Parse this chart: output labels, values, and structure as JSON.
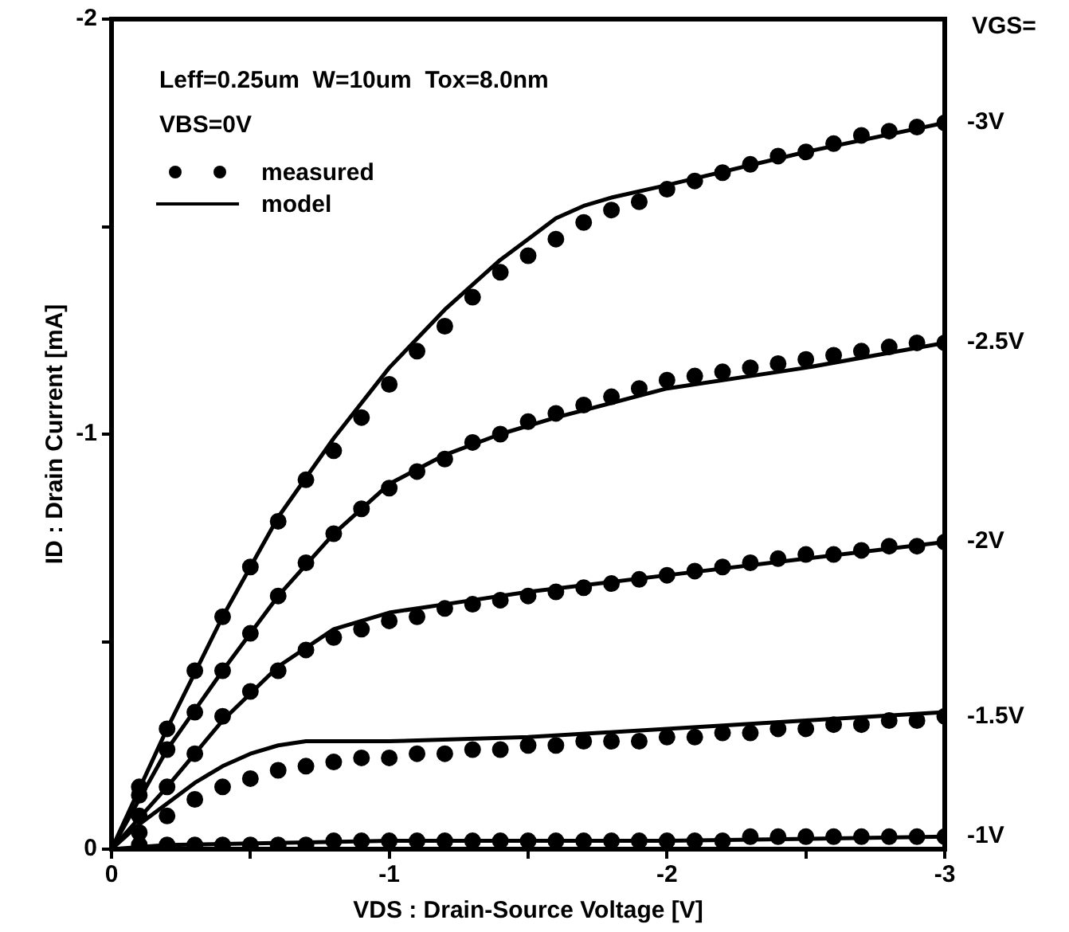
{
  "chart_data": {
    "type": "scatter",
    "xlabel": "VDS : Drain-Source Voltage [V]",
    "ylabel": "ID : Drain Current [mA]",
    "xlim": [
      0,
      -3
    ],
    "ylim": [
      0,
      -2
    ],
    "xticks": [
      0,
      {
        "value": -0.5,
        "label": null
      },
      -1,
      {
        "value": -1.5,
        "label": null
      },
      -2,
      {
        "value": -2.5,
        "label": null
      },
      -3
    ],
    "yticks": [
      0,
      {
        "value": -0.5,
        "label": null
      },
      -1,
      {
        "value": -1.5,
        "label": null
      },
      -2
    ],
    "grid": false,
    "legend": "top left",
    "annotations": [
      "Leff=0.25um  W=10um  Tox=8.0nm",
      "VBS=0V",
      "VGS=",
      "-3V",
      "-2.5V",
      "-2V",
      "-1.5V",
      "-1V"
    ],
    "series": [
      {
        "name": "measured",
        "marker": "circle",
        "color": "#000000",
        "x": [
          -0.1,
          -0.2,
          -0.3,
          -0.4,
          -0.5,
          -0.6,
          -0.7,
          -0.8,
          -0.9,
          -1,
          -1.1,
          -1.2,
          -1.3,
          -1.4,
          -1.5,
          -1.6,
          -1.7,
          -1.8,
          -1.9,
          -2,
          -2.1,
          -2.2,
          -2.3,
          -2.4,
          -2.5,
          -2.6,
          -2.7,
          -2.8,
          -2.9,
          -3
        ],
        "values": [
          -0.15,
          -0.29,
          -0.43,
          -0.56,
          -0.68,
          -0.79,
          -0.89,
          -0.96,
          -1.04,
          -1.12,
          -1.2,
          -1.26,
          -1.33,
          -1.39,
          -1.43,
          -1.47,
          -1.51,
          -1.54,
          -1.56,
          -1.59,
          -1.61,
          -1.63,
          -1.65,
          -1.67,
          -1.68,
          -1.7,
          -1.72,
          -1.73,
          -1.74,
          -1.75
        ]
      },
      {
        "marker": "circle",
        "color": "#000000",
        "x": [
          -0.1,
          -0.2,
          -0.3,
          -0.4,
          -0.5,
          -0.6,
          -0.7,
          -0.8,
          -0.9,
          -1,
          -1.1,
          -1.2,
          -1.3,
          -1.4,
          -1.5,
          -1.6,
          -1.7,
          -1.8,
          -1.9,
          -2,
          -2.1,
          -2.2,
          -2.3,
          -2.4,
          -2.5,
          -2.6,
          -2.7,
          -2.8,
          -2.9,
          -3
        ],
        "values": [
          -0.13,
          -0.24,
          -0.33,
          -0.43,
          -0.52,
          -0.61,
          -0.69,
          -0.76,
          -0.82,
          -0.87,
          -0.91,
          -0.94,
          -0.98,
          -1,
          -1.03,
          -1.05,
          -1.07,
          -1.09,
          -1.11,
          -1.13,
          -1.14,
          -1.15,
          -1.16,
          -1.17,
          -1.18,
          -1.19,
          -1.2,
          -1.21,
          -1.22,
          -1.22
        ]
      },
      {
        "marker": "circle",
        "color": "#000000",
        "x": [
          -0.1,
          -0.2,
          -0.3,
          -0.4,
          -0.5,
          -0.6,
          -0.7,
          -0.8,
          -0.9,
          -1,
          -1.1,
          -1.2,
          -1.3,
          -1.4,
          -1.5,
          -1.6,
          -1.7,
          -1.8,
          -1.9,
          -2,
          -2.1,
          -2.2,
          -2.3,
          -2.4,
          -2.5,
          -2.6,
          -2.7,
          -2.8,
          -2.9,
          -3
        ],
        "values": [
          -0.08,
          -0.15,
          -0.23,
          -0.32,
          -0.38,
          -0.43,
          -0.48,
          -0.51,
          -0.53,
          -0.55,
          -0.56,
          -0.58,
          -0.59,
          -0.6,
          -0.61,
          -0.62,
          -0.63,
          -0.64,
          -0.65,
          -0.66,
          -0.67,
          -0.68,
          -0.69,
          -0.7,
          -0.71,
          -0.71,
          -0.72,
          -0.73,
          -0.73,
          -0.74
        ]
      },
      {
        "marker": "circle",
        "color": "#000000",
        "x": [
          -0.1,
          -0.2,
          -0.3,
          -0.4,
          -0.5,
          -0.6,
          -0.7,
          -0.8,
          -0.9,
          -1,
          -1.1,
          -1.2,
          -1.3,
          -1.4,
          -1.5,
          -1.6,
          -1.7,
          -1.8,
          -1.9,
          -2,
          -2.1,
          -2.2,
          -2.3,
          -2.4,
          -2.5,
          -2.6,
          -2.7,
          -2.8,
          -2.9,
          -3
        ],
        "values": [
          -0.04,
          -0.08,
          -0.12,
          -0.15,
          -0.17,
          -0.19,
          -0.2,
          -0.21,
          -0.22,
          -0.22,
          -0.23,
          -0.23,
          -0.24,
          -0.24,
          -0.25,
          -0.25,
          -0.26,
          -0.26,
          -0.26,
          -0.27,
          -0.27,
          -0.28,
          -0.28,
          -0.29,
          -0.29,
          -0.3,
          -0.3,
          -0.31,
          -0.31,
          -0.32
        ]
      },
      {
        "marker": "circle",
        "color": "#000000",
        "x": [
          -0.1,
          -0.2,
          -0.3,
          -0.4,
          -0.5,
          -0.6,
          -0.7,
          -0.8,
          -0.9,
          -1,
          -1.1,
          -1.2,
          -1.3,
          -1.4,
          -1.5,
          -1.6,
          -1.7,
          -1.8,
          -1.9,
          -2,
          -2.1,
          -2.2,
          -2.3,
          -2.4,
          -2.5,
          -2.6,
          -2.7,
          -2.8,
          -2.9,
          -3
        ],
        "values": [
          -0.01,
          -0.01,
          -0.01,
          -0.01,
          -0.01,
          -0.01,
          -0.01,
          -0.02,
          -0.02,
          -0.02,
          -0.02,
          -0.02,
          -0.02,
          -0.02,
          -0.02,
          -0.02,
          -0.02,
          -0.02,
          -0.02,
          -0.02,
          -0.02,
          -0.02,
          -0.03,
          -0.03,
          -0.03,
          -0.03,
          -0.03,
          -0.03,
          -0.03,
          -0.03
        ]
      },
      {
        "name": "model",
        "type": "line",
        "marker": "none",
        "line_style": "solid",
        "color": "#000000",
        "x": [
          0,
          -0.2,
          -0.4,
          -0.6,
          -0.8,
          -1,
          -1.2,
          -1.4,
          -1.5,
          -1.6,
          -1.7,
          -1.8,
          -2,
          -2.5,
          -3
        ],
        "values": [
          0,
          -0.29,
          -0.56,
          -0.8,
          -0.99,
          -1.16,
          -1.3,
          -1.42,
          -1.47,
          -1.52,
          -1.55,
          -1.57,
          -1.6,
          -1.68,
          -1.75
        ]
      },
      {
        "type": "line",
        "marker": "none",
        "line_style": "solid",
        "color": "#000000",
        "x": [
          0,
          -0.2,
          -0.4,
          -0.6,
          -0.8,
          -1,
          -1.2,
          -1.4,
          -1.6,
          -2,
          -2.5,
          -3
        ],
        "values": [
          0,
          -0.24,
          -0.43,
          -0.61,
          -0.76,
          -0.88,
          -0.95,
          -1,
          -1.04,
          -1.11,
          -1.16,
          -1.22
        ]
      },
      {
        "type": "line",
        "marker": "none",
        "line_style": "solid",
        "color": "#000000",
        "x": [
          0,
          -0.2,
          -0.4,
          -0.6,
          -0.8,
          -1,
          -1.2,
          -1.5,
          -2,
          -2.5,
          -3
        ],
        "values": [
          0,
          -0.15,
          -0.31,
          -0.44,
          -0.53,
          -0.57,
          -0.59,
          -0.62,
          -0.66,
          -0.7,
          -0.74
        ]
      },
      {
        "type": "line",
        "marker": "none",
        "line_style": "solid",
        "color": "#000000",
        "x": [
          0,
          -0.1,
          -0.2,
          -0.3,
          -0.4,
          -0.5,
          -0.6,
          -0.7,
          -1,
          -1.5,
          -2,
          -2.5,
          -3
        ],
        "values": [
          0,
          -0.06,
          -0.11,
          -0.16,
          -0.2,
          -0.23,
          -0.25,
          -0.26,
          -0.26,
          -0.27,
          -0.29,
          -0.31,
          -0.33
        ]
      },
      {
        "type": "line",
        "marker": "none",
        "line_style": "solid",
        "color": "#000000",
        "x": [
          0,
          -0.2,
          -1,
          -2,
          -3
        ],
        "values": [
          0,
          -0.01,
          -0.02,
          -0.02,
          -0.03
        ]
      }
    ]
  }
}
